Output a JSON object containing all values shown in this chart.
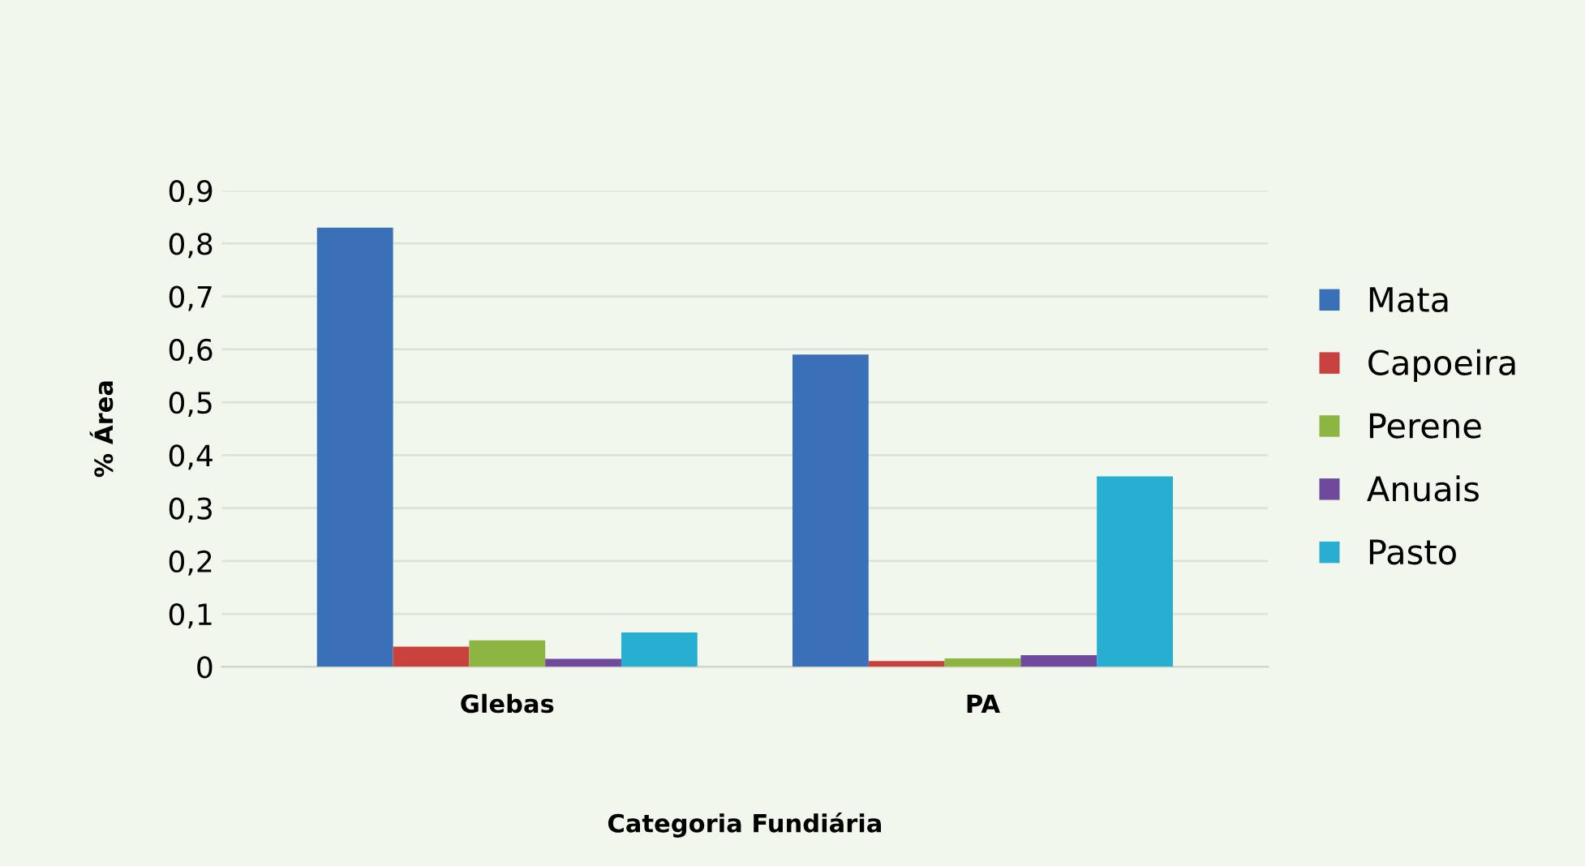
{
  "chart_data": {
    "type": "bar",
    "xlabel": "Categoria Fundiária",
    "ylabel": "% Área",
    "categories": [
      "Glebas",
      "PA"
    ],
    "series": [
      {
        "name": "Mata",
        "color": "#3a70b8",
        "values": [
          0.83,
          0.59
        ]
      },
      {
        "name": "Capoeira",
        "color": "#c8413c",
        "values": [
          0.038,
          0.011
        ]
      },
      {
        "name": "Perene",
        "color": "#8db542",
        "values": [
          0.05,
          0.016
        ]
      },
      {
        "name": "Anuais",
        "color": "#6f4a9c",
        "values": [
          0.015,
          0.022
        ]
      },
      {
        "name": "Pasto",
        "color": "#27aed0",
        "values": [
          0.065,
          0.36
        ]
      }
    ],
    "ylim": [
      0,
      0.9
    ],
    "yticks": [
      0,
      {
        "value": 0.1,
        "label": "0,1"
      },
      {
        "value": 0.2,
        "label": "0,2"
      },
      {
        "value": 0.3,
        "label": "0,3"
      },
      {
        "value": 0.4,
        "label": "0,4"
      },
      {
        "value": 0.5,
        "label": "0,5"
      },
      {
        "value": 0.6,
        "label": "0,6"
      },
      {
        "value": 0.7,
        "label": "0,7"
      },
      {
        "value": 0.8,
        "label": "0,8"
      },
      {
        "value": 0.9,
        "label": "0,9"
      }
    ],
    "grid": "y",
    "legend": "right"
  }
}
